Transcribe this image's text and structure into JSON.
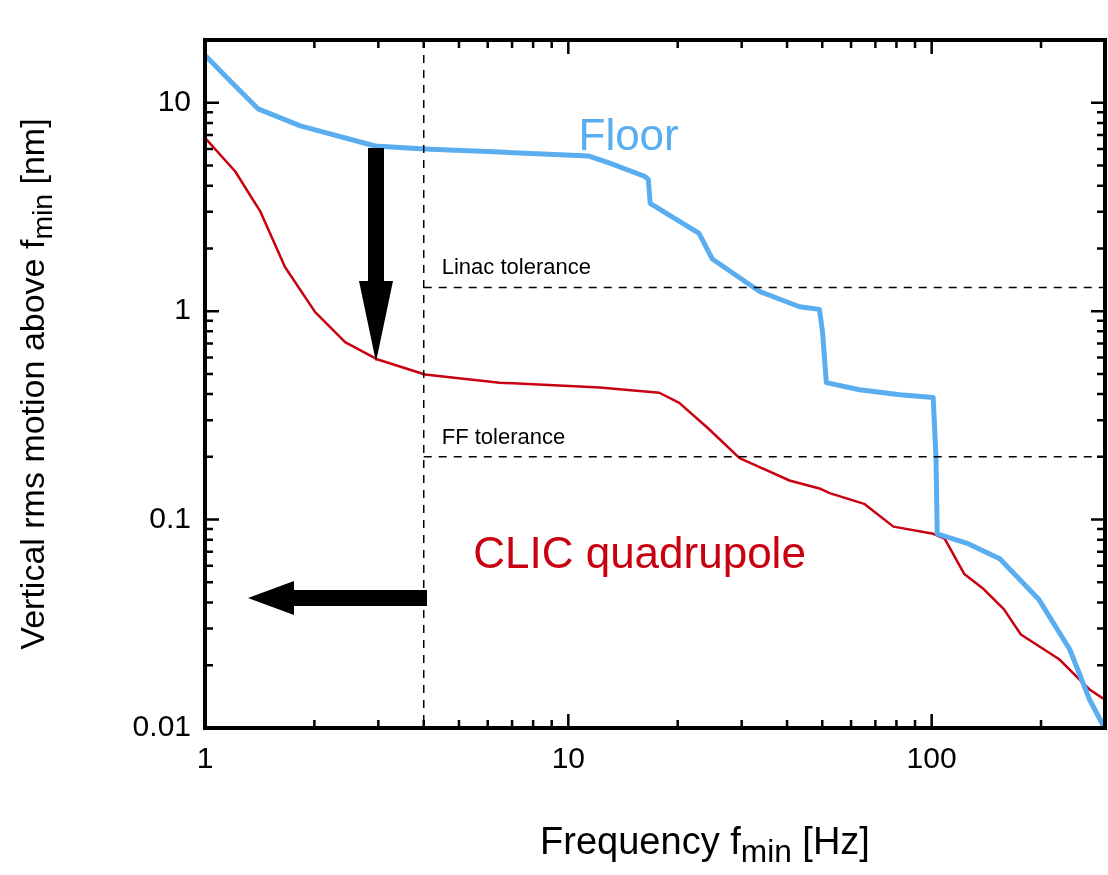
{
  "chart_data": {
    "type": "line",
    "xlabel": "Frequency f$_{min}$ [Hz]",
    "ylabel": "Vertical rms motion above f$_{min}$ [nm]",
    "log": "xy",
    "grid": false,
    "legend": false,
    "marker": "none",
    "line_style": "solid",
    "xlim": [
      1,
      300
    ],
    "ylim": [
      0.01,
      20
    ],
    "xticks": [
      1,
      {
        "value": 2,
        "label": null
      },
      {
        "value": 3,
        "label": null
      },
      {
        "value": 4,
        "label": null
      },
      {
        "value": 5,
        "label": null
      },
      {
        "value": 6,
        "label": null
      },
      {
        "value": 7,
        "label": null
      },
      {
        "value": 8,
        "label": null
      },
      {
        "value": 9,
        "label": null
      },
      10,
      {
        "value": 20,
        "label": null
      },
      {
        "value": 30,
        "label": null
      },
      {
        "value": 40,
        "label": null
      },
      {
        "value": 50,
        "label": null
      },
      {
        "value": 60,
        "label": null
      },
      {
        "value": 70,
        "label": null
      },
      {
        "value": 80,
        "label": null
      },
      {
        "value": 90,
        "label": null
      },
      100,
      {
        "value": 200,
        "label": null
      }
    ],
    "yticks": [
      {
        "value": 0.01,
        "label": "0.01"
      },
      {
        "value": 0.02,
        "label": null
      },
      {
        "value": 0.03,
        "label": null
      },
      {
        "value": 0.04,
        "label": null
      },
      {
        "value": 0.05,
        "label": null
      },
      {
        "value": 0.06,
        "label": null
      },
      {
        "value": 0.07,
        "label": null
      },
      {
        "value": 0.08,
        "label": null
      },
      {
        "value": 0.09,
        "label": null
      },
      {
        "value": 0.1,
        "label": "0.1"
      },
      {
        "value": 0.2,
        "label": null
      },
      {
        "value": 0.3,
        "label": null
      },
      {
        "value": 0.4,
        "label": null
      },
      {
        "value": 0.5,
        "label": null
      },
      {
        "value": 0.6,
        "label": null
      },
      {
        "value": 0.7,
        "label": null
      },
      {
        "value": 0.8,
        "label": null
      },
      {
        "value": 0.9,
        "label": null
      },
      1,
      {
        "value": 2,
        "label": null
      },
      {
        "value": 3,
        "label": null
      },
      {
        "value": 4,
        "label": null
      },
      {
        "value": 5,
        "label": null
      },
      {
        "value": 6,
        "label": null
      },
      {
        "value": 7,
        "label": null
      },
      {
        "value": 8,
        "label": null
      },
      {
        "value": 9,
        "label": null
      },
      10,
      {
        "value": 20,
        "label": null
      }
    ],
    "ref_lines": [
      {
        "axis": "x",
        "value": 4,
        "label": null,
        "color": "#000000",
        "line_style": "dashed"
      },
      {
        "axis": "y",
        "value": 1.3,
        "label": "Linac tolerance",
        "color": "#000000",
        "line_style": "dashed"
      },
      {
        "axis": "y",
        "value": 0.2,
        "label": "FF tolerance",
        "color": "#000000",
        "line_style": "dashed"
      }
    ],
    "series": [
      {
        "name": "Floor",
        "color": "#5aaef0",
        "x": [
          1,
          1.17,
          1.4,
          1.83,
          2.94,
          4.03,
          6.47,
          11.4,
          13,
          16.2,
          16.6,
          16.8,
          22.9,
          24.9,
          33.7,
          43.3,
          49.1,
          50.1,
          51.3,
          63.3,
          81.7,
          101,
          102.8,
          103.6,
          126,
          154,
          197,
          240,
          272,
          299
        ],
        "values": [
          16.9,
          12.8,
          9.35,
          7.74,
          6.2,
          6,
          5.8,
          5.55,
          5.13,
          4.44,
          4.29,
          3.29,
          2.36,
          1.78,
          1.24,
          1.05,
          1.02,
          0.79,
          0.454,
          0.42,
          0.397,
          0.385,
          0.197,
          0.0855,
          0.0766,
          0.0648,
          0.0415,
          0.0238,
          0.0137,
          0.01
        ]
      },
      {
        "name": "CLIC quadrupole",
        "color": "#c8000f",
        "x": [
          1,
          1.21,
          1.42,
          1.66,
          2.01,
          2.43,
          2.99,
          4.03,
          6.47,
          12.2,
          17.8,
          20.2,
          24.2,
          29.6,
          40.6,
          49.1,
          52.4,
          65.2,
          78.5,
          101,
          108.6,
          123,
          139,
          158,
          176,
          225,
          272,
          299
        ],
        "values": [
          6.78,
          4.69,
          3.01,
          1.63,
          0.99,
          0.71,
          0.586,
          0.497,
          0.454,
          0.43,
          0.406,
          0.363,
          0.275,
          0.197,
          0.154,
          0.141,
          0.134,
          0.119,
          0.0925,
          0.0855,
          0.081,
          0.0548,
          0.0464,
          0.0372,
          0.0281,
          0.0213,
          0.0153,
          0.0137
        ]
      }
    ]
  }
}
